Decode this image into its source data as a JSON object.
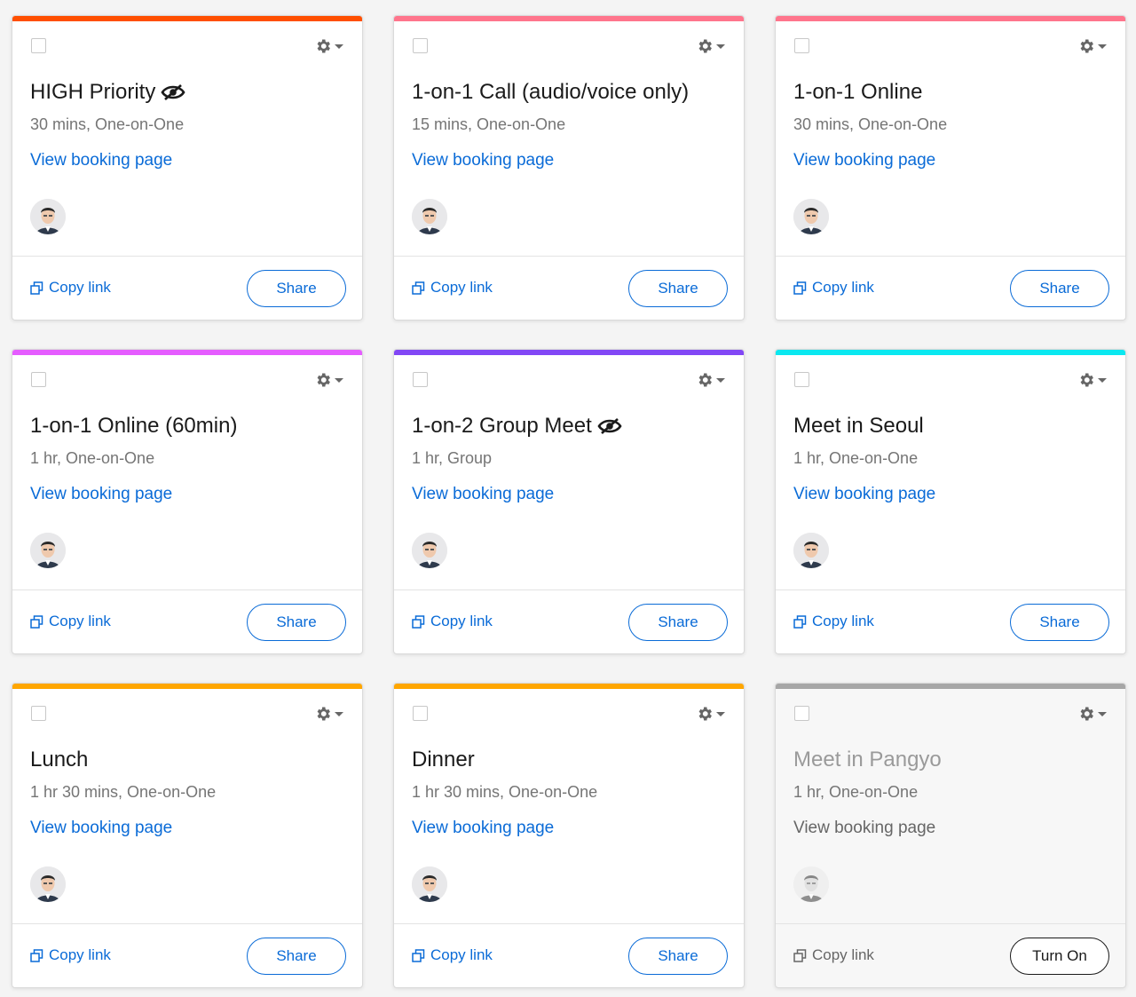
{
  "copy_link_label": "Copy link",
  "cards": [
    {
      "title": "HIGH Priority",
      "subtitle": "30 mins, One-on-One",
      "link_label": "View booking page",
      "action_label": "Share",
      "color": "#ff4f00",
      "hidden": true,
      "active": true
    },
    {
      "title": "1-on-1 Call (audio/voice only)",
      "subtitle": "15 mins, One-on-One",
      "link_label": "View booking page",
      "action_label": "Share",
      "color": "#ff758c",
      "hidden": false,
      "active": true
    },
    {
      "title": "1-on-1 Online",
      "subtitle": "30 mins, One-on-One",
      "link_label": "View booking page",
      "action_label": "Share",
      "color": "#ff758c",
      "hidden": false,
      "active": true
    },
    {
      "title": "1-on-1 Online (60min)",
      "subtitle": "1 hr, One-on-One",
      "link_label": "View booking page",
      "action_label": "Share",
      "color": "#e55cff",
      "hidden": false,
      "active": true
    },
    {
      "title": "1-on-2 Group Meet",
      "subtitle": "1 hr, Group",
      "link_label": "View booking page",
      "action_label": "Share",
      "color": "#8247f5",
      "hidden": true,
      "active": true
    },
    {
      "title": "Meet in Seoul",
      "subtitle": "1 hr, One-on-One",
      "link_label": "View booking page",
      "action_label": "Share",
      "color": "#0ae8f0",
      "hidden": false,
      "active": true
    },
    {
      "title": "Lunch",
      "subtitle": "1 hr 30 mins, One-on-One",
      "link_label": "View booking page",
      "action_label": "Share",
      "color": "#ffa600",
      "hidden": false,
      "active": true
    },
    {
      "title": "Dinner",
      "subtitle": "1 hr 30 mins, One-on-One",
      "link_label": "View booking page",
      "action_label": "Share",
      "color": "#ffa600",
      "hidden": false,
      "active": true
    },
    {
      "title": "Meet in Pangyo",
      "subtitle": "1 hr, One-on-One",
      "link_label": "View booking page",
      "action_label": "Turn On",
      "color": "#a6a6a6",
      "hidden": false,
      "active": false
    }
  ]
}
